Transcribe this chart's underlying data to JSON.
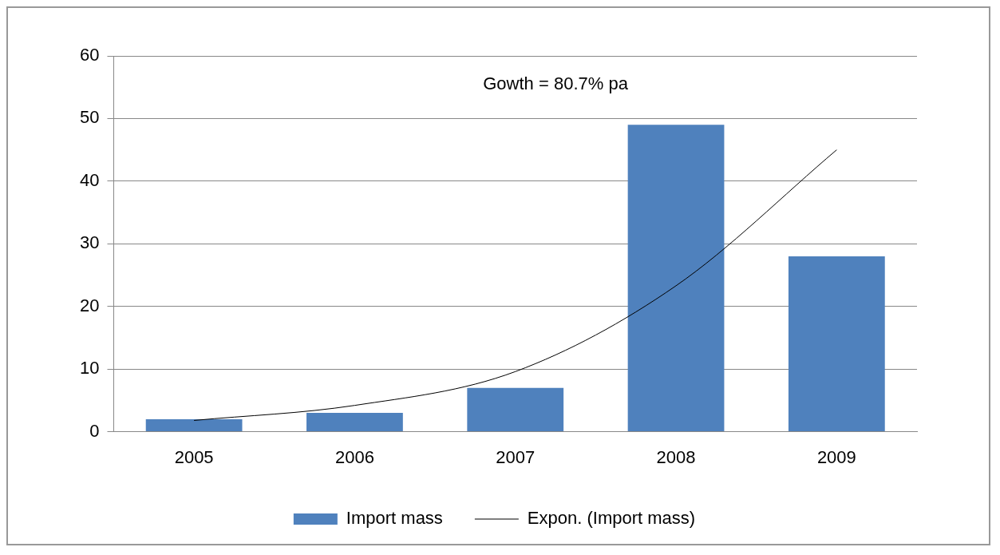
{
  "chart_data": {
    "type": "bar",
    "categories": [
      "2005",
      "2006",
      "2007",
      "2008",
      "2009"
    ],
    "series": [
      {
        "name": "Import mass",
        "color": "#4f81bd",
        "values": [
          2,
          3,
          7,
          49,
          28
        ]
      },
      {
        "name": "Expon. (Import mass)",
        "type": "line",
        "color": "#000000",
        "values": [
          1.8,
          4.2,
          9.6,
          23.3,
          45
        ]
      }
    ],
    "ylim": [
      0,
      60
    ],
    "yticks": [
      0,
      10,
      20,
      30,
      40,
      50,
      60
    ],
    "grid": "y",
    "legend": "bottom",
    "marker": "none",
    "annotations": [
      "Gowth = 80.7% pa"
    ]
  }
}
